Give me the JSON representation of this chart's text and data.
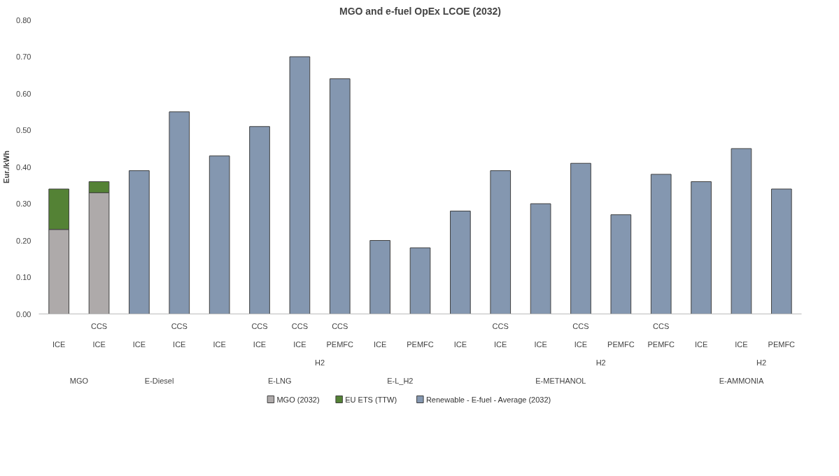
{
  "chart_data": {
    "type": "bar",
    "title": "MGO and e-fuel OpEx LCOE (2032)",
    "ylabel": "Eur./kWh",
    "categories": [
      "ICE",
      "CCS\nICE",
      "ICE",
      "CCS\nICE",
      "ICE",
      "CCS\nICE",
      "CCS\nICE",
      "CCS\nPEMFC",
      "ICE",
      "PEMFC",
      "ICE",
      "CCS\nICE",
      "ICE",
      "CCS\nICE",
      "PEMFC",
      "CCS\nPEMFC",
      "ICE",
      "ICE",
      "PEMFC"
    ],
    "series": [
      {
        "name": "MGO (2032)",
        "color": "#aeaaaa",
        "values": [
          0.23,
          0.33,
          null,
          null,
          null,
          null,
          null,
          null,
          null,
          null,
          null,
          null,
          null,
          null,
          null,
          null,
          null,
          null,
          null
        ]
      },
      {
        "name": "EU ETS  (TTW)",
        "color": "#548235",
        "values": [
          0.11,
          0.03,
          null,
          null,
          null,
          null,
          null,
          null,
          null,
          null,
          null,
          null,
          null,
          null,
          null,
          null,
          null,
          null,
          null
        ]
      },
      {
        "name": "Renewable - E-fuel -  Average (2032)",
        "color": "#8497b0",
        "values": [
          null,
          null,
          0.39,
          0.55,
          0.43,
          0.51,
          0.7,
          0.64,
          0.2,
          0.18,
          0.28,
          0.39,
          0.3,
          0.41,
          0.27,
          0.38,
          0.36,
          0.45,
          0.34
        ]
      }
    ],
    "stacked": true,
    "annotations": [
      "H2",
      "H2",
      "H2",
      "MGO",
      "E-Diesel",
      "E-LNG",
      "E-L_H2",
      "E-METHANOL",
      "E-AMMONIA"
    ],
    "ylim": [
      0,
      0.8
    ],
    "yticks": [
      {
        "value": 0,
        "label": "0.00"
      },
      {
        "value": 0.1,
        "label": "0.10"
      },
      {
        "value": 0.2,
        "label": "0.20"
      },
      {
        "value": 0.3,
        "label": "0.30"
      },
      {
        "value": 0.4,
        "label": "0.40"
      },
      {
        "value": 0.5,
        "label": "0.50"
      },
      {
        "value": 0.6,
        "label": "0.60"
      },
      {
        "value": 0.7,
        "label": "0.70"
      },
      {
        "value": 0.8,
        "label": "0.80"
      }
    ],
    "legend": "bottom"
  }
}
